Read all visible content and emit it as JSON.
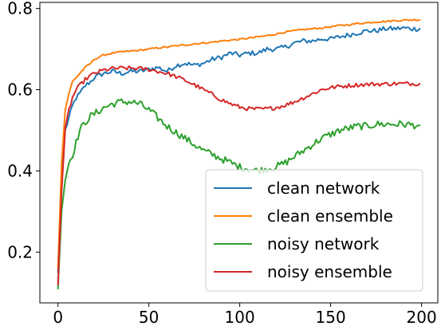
{
  "chart_data": {
    "type": "line",
    "title": "",
    "xlabel": "",
    "ylabel": "",
    "xlim": [
      -9.95,
      208.95
    ],
    "ylim": [
      0.075,
      0.815
    ],
    "x_ticks": [
      0,
      50,
      100,
      150,
      200
    ],
    "y_ticks": [
      0.2,
      0.4,
      0.6,
      0.8
    ],
    "x_tick_labels": [
      "0",
      "50",
      "100",
      "150",
      "200"
    ],
    "y_tick_labels": [
      "0.2",
      "0.4",
      "0.6",
      "0.8"
    ],
    "grid": false,
    "legend_position": "lower-right",
    "series": [
      {
        "name": "clean network",
        "color": "#1f77b4",
        "x": [
          0,
          2,
          4,
          6,
          8,
          10,
          12,
          15,
          18,
          20,
          25,
          30,
          35,
          40,
          45,
          50,
          55,
          60,
          65,
          70,
          75,
          80,
          85,
          90,
          95,
          100,
          105,
          110,
          115,
          120,
          125,
          130,
          135,
          140,
          145,
          150,
          155,
          160,
          165,
          170,
          175,
          180,
          185,
          190,
          195,
          199
        ],
        "y": [
          0.15,
          0.38,
          0.5,
          0.53,
          0.56,
          0.58,
          0.59,
          0.61,
          0.62,
          0.63,
          0.64,
          0.645,
          0.64,
          0.645,
          0.645,
          0.65,
          0.655,
          0.645,
          0.66,
          0.665,
          0.66,
          0.665,
          0.675,
          0.68,
          0.69,
          0.685,
          0.69,
          0.69,
          0.7,
          0.7,
          0.705,
          0.715,
          0.72,
          0.72,
          0.725,
          0.725,
          0.73,
          0.735,
          0.74,
          0.745,
          0.745,
          0.75,
          0.75,
          0.752,
          0.75,
          0.75
        ]
      },
      {
        "name": "clean ensemble",
        "color": "#ff7f0e",
        "x": [
          0,
          2,
          4,
          6,
          8,
          10,
          12,
          15,
          18,
          20,
          25,
          30,
          35,
          40,
          45,
          50,
          55,
          60,
          65,
          70,
          75,
          80,
          85,
          90,
          95,
          100,
          105,
          110,
          115,
          120,
          125,
          130,
          135,
          140,
          145,
          150,
          155,
          160,
          165,
          170,
          175,
          180,
          185,
          190,
          195,
          199
        ],
        "y": [
          0.16,
          0.42,
          0.55,
          0.59,
          0.62,
          0.63,
          0.64,
          0.655,
          0.665,
          0.675,
          0.685,
          0.69,
          0.693,
          0.695,
          0.697,
          0.7,
          0.703,
          0.705,
          0.708,
          0.71,
          0.713,
          0.715,
          0.717,
          0.72,
          0.722,
          0.724,
          0.727,
          0.73,
          0.733,
          0.737,
          0.742,
          0.745,
          0.748,
          0.75,
          0.752,
          0.755,
          0.758,
          0.76,
          0.763,
          0.765,
          0.767,
          0.768,
          0.77,
          0.771,
          0.772,
          0.772
        ]
      },
      {
        "name": "noisy network",
        "color": "#2ca02c",
        "x": [
          0,
          2,
          4,
          6,
          8,
          10,
          12,
          15,
          18,
          20,
          25,
          30,
          35,
          40,
          45,
          50,
          55,
          60,
          65,
          70,
          75,
          80,
          85,
          90,
          95,
          100,
          105,
          110,
          115,
          120,
          125,
          130,
          135,
          140,
          145,
          150,
          155,
          160,
          165,
          170,
          175,
          180,
          185,
          190,
          195,
          199
        ],
        "y": [
          0.11,
          0.3,
          0.38,
          0.42,
          0.44,
          0.47,
          0.5,
          0.52,
          0.535,
          0.54,
          0.555,
          0.565,
          0.57,
          0.57,
          0.565,
          0.55,
          0.53,
          0.51,
          0.495,
          0.48,
          0.465,
          0.45,
          0.44,
          0.43,
          0.42,
          0.41,
          0.405,
          0.4,
          0.405,
          0.41,
          0.42,
          0.435,
          0.45,
          0.465,
          0.48,
          0.49,
          0.5,
          0.505,
          0.51,
          0.51,
          0.515,
          0.515,
          0.515,
          0.515,
          0.513,
          0.512
        ]
      },
      {
        "name": "noisy ensemble",
        "color": "#d62728",
        "x": [
          0,
          2,
          4,
          6,
          8,
          10,
          12,
          15,
          18,
          20,
          25,
          30,
          35,
          40,
          45,
          50,
          55,
          60,
          65,
          70,
          75,
          80,
          85,
          90,
          95,
          100,
          105,
          110,
          115,
          120,
          125,
          130,
          135,
          140,
          145,
          150,
          155,
          160,
          165,
          170,
          175,
          180,
          185,
          190,
          195,
          199
        ],
        "y": [
          0.12,
          0.35,
          0.5,
          0.55,
          0.58,
          0.6,
          0.61,
          0.625,
          0.635,
          0.64,
          0.648,
          0.652,
          0.653,
          0.653,
          0.652,
          0.65,
          0.645,
          0.64,
          0.632,
          0.623,
          0.612,
          0.6,
          0.588,
          0.575,
          0.565,
          0.557,
          0.553,
          0.552,
          0.553,
          0.556,
          0.562,
          0.57,
          0.58,
          0.59,
          0.6,
          0.605,
          0.608,
          0.61,
          0.612,
          0.613,
          0.614,
          0.614,
          0.615,
          0.615,
          0.615,
          0.615
        ]
      }
    ]
  }
}
